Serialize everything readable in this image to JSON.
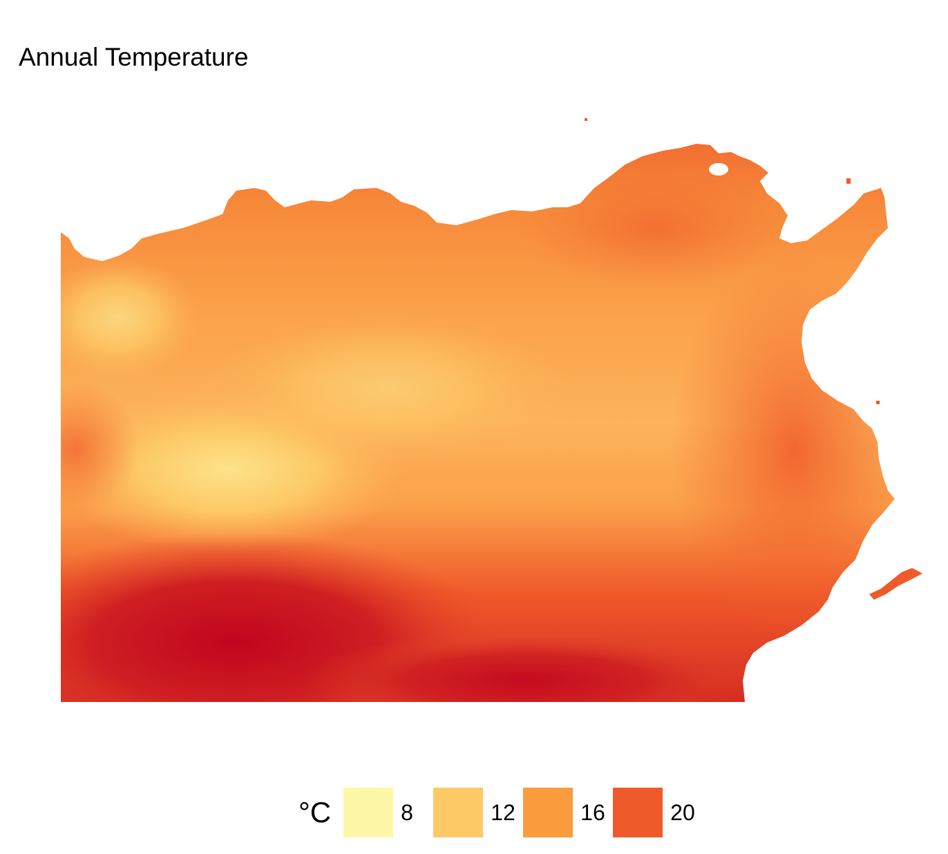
{
  "title": "Annual Temperature",
  "legend": {
    "title": "°C",
    "items": [
      {
        "label": "8",
        "color": "#fff7a8"
      },
      {
        "label": "12",
        "color": "#fdc966"
      },
      {
        "label": "16",
        "color": "#fb9c3e"
      },
      {
        "label": "20",
        "color": "#f05a2a"
      }
    ],
    "hottest_color": "#c2041f"
  }
}
